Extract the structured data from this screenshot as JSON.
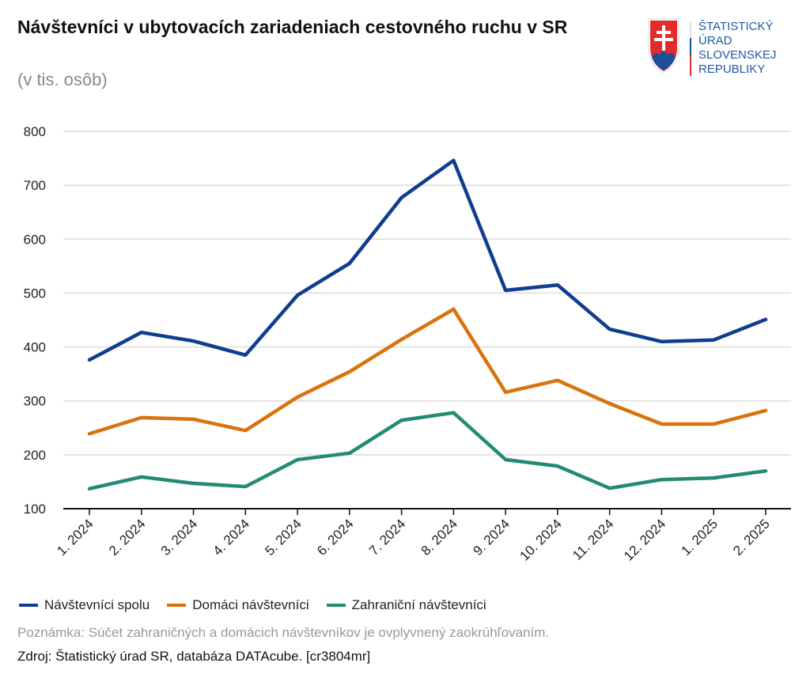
{
  "logo": {
    "lines": [
      "ŠTATISTICKÝ",
      "ÚRAD",
      "SLOVENSKEJ",
      "REPUBLIKY"
    ]
  },
  "note": "Poznámka: Súčet zahraničných a domácich návštevníkov je ovplyvnený zaokrúhľovaním.",
  "source": "Zdroj: Štatistický úrad SR, databáza DATAcube. [cr3804mr]",
  "chart_data": {
    "type": "line",
    "title": "Návštevníci v ubytovacích zariadeniach cestovného ruchu v SR",
    "subtitle": "(v tis. osôb)",
    "categories": [
      "1. 2024",
      "2. 2024",
      "3. 2024",
      "4. 2024",
      "5. 2024",
      "6. 2024",
      "7. 2024",
      "8. 2024",
      "9. 2024",
      "10. 2024",
      "11. 2024",
      "12. 2024",
      "1. 2025",
      "2. 2025"
    ],
    "ylim": [
      100,
      800
    ],
    "yticks": [
      100,
      200,
      300,
      400,
      500,
      600,
      700,
      800
    ],
    "grid": true,
    "legend_position": "bottom",
    "series": [
      {
        "name": "Návštevníci spolu",
        "color": "#0f3d8f",
        "values": [
          376,
          427,
          411,
          385,
          496,
          555,
          677,
          746,
          505,
          515,
          433,
          410,
          413,
          451
        ]
      },
      {
        "name": "Domáci návštevníci",
        "color": "#d9730d",
        "values": [
          239,
          269,
          266,
          245,
          307,
          354,
          414,
          470,
          316,
          338,
          295,
          257,
          257,
          282
        ]
      },
      {
        "name": "Zahraniční návštevníci",
        "color": "#238a74",
        "values": [
          137,
          159,
          147,
          141,
          191,
          203,
          264,
          278,
          191,
          179,
          138,
          154,
          157,
          170
        ]
      }
    ]
  }
}
